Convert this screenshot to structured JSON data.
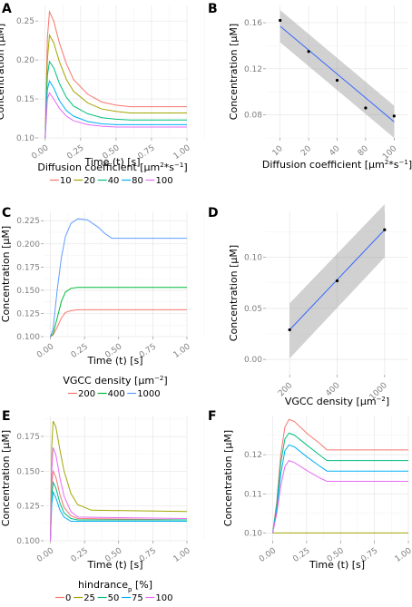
{
  "chart_data": [
    {
      "panel": "A",
      "type": "line",
      "xlabel": "Time (t) [s]",
      "ylabel": "Concentration [µM]",
      "xlim": [
        -0.05,
        1.0
      ],
      "ylim": [
        0.1,
        0.27
      ],
      "xticks": [
        "0.00",
        "0.25",
        "0.50",
        "0.75",
        "1.00"
      ],
      "yticks": [
        "0.10",
        "0.15",
        "0.20",
        "0.25"
      ],
      "legend": {
        "title": "Diffusion coefficient [µm²*s⁻¹]",
        "position": "bottom"
      },
      "series": [
        {
          "name": "10",
          "color": "#F8766D",
          "values": [
            [
              0,
              0.1
            ],
            [
              0.015,
              0.228
            ],
            [
              0.03,
              0.262
            ],
            [
              0.06,
              0.25
            ],
            [
              0.1,
              0.222
            ],
            [
              0.15,
              0.195
            ],
            [
              0.2,
              0.175
            ],
            [
              0.3,
              0.156
            ],
            [
              0.4,
              0.146
            ],
            [
              0.5,
              0.142
            ],
            [
              0.6,
              0.14
            ],
            [
              1.0,
              0.14
            ]
          ]
        },
        {
          "name": "20",
          "color": "#A3A500",
          "values": [
            [
              0,
              0.1
            ],
            [
              0.015,
              0.2
            ],
            [
              0.03,
              0.232
            ],
            [
              0.06,
              0.222
            ],
            [
              0.1,
              0.198
            ],
            [
              0.15,
              0.175
            ],
            [
              0.2,
              0.16
            ],
            [
              0.3,
              0.145
            ],
            [
              0.4,
              0.137
            ],
            [
              0.5,
              0.134
            ],
            [
              0.6,
              0.132
            ],
            [
              1.0,
              0.132
            ]
          ]
        },
        {
          "name": "40",
          "color": "#00BF7D",
          "values": [
            [
              0,
              0.1
            ],
            [
              0.015,
              0.18
            ],
            [
              0.03,
              0.198
            ],
            [
              0.06,
              0.19
            ],
            [
              0.1,
              0.17
            ],
            [
              0.15,
              0.152
            ],
            [
              0.2,
              0.141
            ],
            [
              0.3,
              0.131
            ],
            [
              0.4,
              0.126
            ],
            [
              0.5,
              0.124
            ],
            [
              0.6,
              0.123
            ],
            [
              1.0,
              0.123
            ]
          ]
        },
        {
          "name": "80",
          "color": "#00B0F6",
          "values": [
            [
              0,
              0.1
            ],
            [
              0.015,
              0.162
            ],
            [
              0.03,
              0.173
            ],
            [
              0.06,
              0.164
            ],
            [
              0.1,
              0.148
            ],
            [
              0.15,
              0.135
            ],
            [
              0.2,
              0.128
            ],
            [
              0.3,
              0.121
            ],
            [
              0.4,
              0.118
            ],
            [
              0.5,
              0.117
            ],
            [
              1.0,
              0.117
            ]
          ]
        },
        {
          "name": "100",
          "color": "#E76BF3",
          "values": [
            [
              0,
              0.1
            ],
            [
              0.015,
              0.15
            ],
            [
              0.03,
              0.158
            ],
            [
              0.06,
              0.15
            ],
            [
              0.1,
              0.138
            ],
            [
              0.15,
              0.128
            ],
            [
              0.2,
              0.122
            ],
            [
              0.3,
              0.117
            ],
            [
              0.4,
              0.115
            ],
            [
              0.5,
              0.114
            ],
            [
              1.0,
              0.114
            ]
          ]
        }
      ]
    },
    {
      "panel": "B",
      "type": "scatter",
      "xlabel": "Diffusion coefficient [µm²*s⁻¹]",
      "ylabel": "Concentration [µM]",
      "categories": [
        "10",
        "20",
        "40",
        "80",
        "100"
      ],
      "values": [
        0.162,
        0.135,
        0.11,
        0.086,
        0.079
      ],
      "ylim": [
        0.06,
        0.175
      ],
      "yticks": [
        "0.08",
        "0.12",
        "0.16"
      ],
      "fit": {
        "start": 0.157,
        "end": 0.074,
        "band_start": [
          0.143,
          0.171
        ],
        "band_end": [
          0.06,
          0.088
        ]
      }
    },
    {
      "panel": "C",
      "type": "line",
      "xlabel": "Time (t) [s]",
      "ylabel": "Concentration [µM]",
      "xlim": [
        -0.05,
        1.0
      ],
      "ylim": [
        0.1,
        0.235
      ],
      "xticks": [
        "0.00",
        "0.25",
        "0.50",
        "0.75",
        "1.00"
      ],
      "yticks": [
        "0.100",
        "0.125",
        "0.150",
        "0.175",
        "0.200",
        "0.225"
      ],
      "legend": {
        "title": "VGCC density [µm⁻²]",
        "position": "bottom"
      },
      "series": [
        {
          "name": "200",
          "color": "#F8766D",
          "values": [
            [
              0,
              0.1
            ],
            [
              0.02,
              0.102
            ],
            [
              0.05,
              0.11
            ],
            [
              0.08,
              0.12
            ],
            [
              0.11,
              0.126
            ],
            [
              0.15,
              0.128
            ],
            [
              0.2,
              0.129
            ],
            [
              1.0,
              0.129
            ]
          ]
        },
        {
          "name": "400",
          "color": "#00BA38",
          "values": [
            [
              0,
              0.1
            ],
            [
              0.02,
              0.103
            ],
            [
              0.05,
              0.12
            ],
            [
              0.08,
              0.138
            ],
            [
              0.11,
              0.148
            ],
            [
              0.15,
              0.152
            ],
            [
              0.2,
              0.153
            ],
            [
              1.0,
              0.153
            ]
          ]
        },
        {
          "name": "1000",
          "color": "#619CFF",
          "values": [
            [
              0,
              0.1
            ],
            [
              0.02,
              0.108
            ],
            [
              0.05,
              0.15
            ],
            [
              0.08,
              0.185
            ],
            [
              0.11,
              0.208
            ],
            [
              0.15,
              0.222
            ],
            [
              0.2,
              0.227
            ],
            [
              0.27,
              0.226
            ],
            [
              0.35,
              0.218
            ],
            [
              0.4,
              0.211
            ],
            [
              0.45,
              0.206
            ],
            [
              1.0,
              0.206
            ]
          ]
        }
      ]
    },
    {
      "panel": "D",
      "type": "scatter",
      "xlabel": "VGCC density [µm⁻²]",
      "ylabel": "Concentration [µM]",
      "categories": [
        "200",
        "400",
        "1000"
      ],
      "values": [
        0.029,
        0.077,
        0.127
      ],
      "ylim": [
        -0.015,
        0.145
      ],
      "yticks": [
        "0.00",
        "0.05",
        "0.10"
      ],
      "fit": {
        "start": 0.029,
        "end": 0.127,
        "band_start": [
          0.001,
          0.055
        ],
        "band_end": [
          0.1,
          0.152
        ]
      }
    },
    {
      "panel": "E",
      "type": "line",
      "xlabel": "Time (t) [s]",
      "ylabel": "Concentration [µM]",
      "xlim": [
        -0.05,
        1.0
      ],
      "ylim": [
        0.1,
        0.19
      ],
      "xticks": [
        "0.00",
        "0.25",
        "0.50",
        "0.75",
        "1.00"
      ],
      "yticks": [
        "0.100",
        "0.125",
        "0.150",
        "0.175"
      ],
      "legend": {
        "title": "hindrance_p [%]",
        "position": "bottom"
      },
      "series": [
        {
          "name": "0",
          "color": "#F8766D",
          "values": [
            [
              0,
              0.1
            ],
            [
              0.01,
              0.14
            ],
            [
              0.02,
              0.15
            ],
            [
              0.04,
              0.146
            ],
            [
              0.07,
              0.133
            ],
            [
              0.1,
              0.124
            ],
            [
              0.15,
              0.118
            ],
            [
              0.2,
              0.116
            ],
            [
              1.0,
              0.115
            ]
          ]
        },
        {
          "name": "25",
          "color": "#A3A500",
          "values": [
            [
              0,
              0.1
            ],
            [
              0.01,
              0.168
            ],
            [
              0.02,
              0.186
            ],
            [
              0.04,
              0.182
            ],
            [
              0.07,
              0.165
            ],
            [
              0.1,
              0.15
            ],
            [
              0.15,
              0.134
            ],
            [
              0.2,
              0.126
            ],
            [
              0.3,
              0.122
            ],
            [
              1.0,
              0.121
            ]
          ]
        },
        {
          "name": "50",
          "color": "#00BF7D",
          "values": [
            [
              0,
              0.1
            ],
            [
              0.01,
              0.132
            ],
            [
              0.02,
              0.142
            ],
            [
              0.04,
              0.138
            ],
            [
              0.07,
              0.127
            ],
            [
              0.1,
              0.12
            ],
            [
              0.15,
              0.116
            ],
            [
              0.2,
              0.115
            ],
            [
              1.0,
              0.115
            ]
          ]
        },
        {
          "name": "75",
          "color": "#00B0F6",
          "values": [
            [
              0,
              0.1
            ],
            [
              0.01,
              0.126
            ],
            [
              0.02,
              0.135
            ],
            [
              0.04,
              0.131
            ],
            [
              0.07,
              0.122
            ],
            [
              0.1,
              0.117
            ],
            [
              0.15,
              0.114
            ],
            [
              1.0,
              0.114
            ]
          ]
        },
        {
          "name": "100",
          "color": "#E76BF3",
          "values": [
            [
              0,
              0.1
            ],
            [
              0.01,
              0.15
            ],
            [
              0.02,
              0.167
            ],
            [
              0.04,
              0.162
            ],
            [
              0.07,
              0.145
            ],
            [
              0.1,
              0.132
            ],
            [
              0.15,
              0.121
            ],
            [
              0.2,
              0.117
            ],
            [
              1.0,
              0.116
            ]
          ]
        }
      ]
    },
    {
      "panel": "F",
      "type": "line",
      "xlabel": "Time (t) [s]",
      "ylabel": "Concentration [µM]",
      "xlim": [
        -0.05,
        1.0
      ],
      "ylim": [
        0.098,
        0.13
      ],
      "xticks": [
        "0.00",
        "0.25",
        "0.50",
        "0.75",
        "1.00"
      ],
      "yticks": [
        "0.10",
        "0.11",
        "0.12"
      ],
      "legend": {
        "title": "hindrance_p [%]",
        "position": "bottom"
      },
      "series": [
        {
          "name": "0",
          "color": "#F8766D",
          "values": [
            [
              0,
              0.1
            ],
            [
              0.03,
              0.108
            ],
            [
              0.06,
              0.12
            ],
            [
              0.09,
              0.127
            ],
            [
              0.12,
              0.129
            ],
            [
              0.16,
              0.1285
            ],
            [
              0.25,
              0.1255
            ],
            [
              0.35,
              0.1228
            ],
            [
              0.4,
              0.1212
            ],
            [
              0.45,
              0.1212
            ],
            [
              1.0,
              0.1212
            ]
          ]
        },
        {
          "name": "25",
          "color": "#A3A500",
          "values": [
            [
              0,
              0.1
            ],
            [
              1.0,
              0.1
            ]
          ]
        },
        {
          "name": "50",
          "color": "#00BF7D",
          "values": [
            [
              0,
              0.1
            ],
            [
              0.03,
              0.107
            ],
            [
              0.06,
              0.118
            ],
            [
              0.09,
              0.124
            ],
            [
              0.12,
              0.1255
            ],
            [
              0.16,
              0.125
            ],
            [
              0.25,
              0.1225
            ],
            [
              0.35,
              0.1198
            ],
            [
              0.4,
              0.1185
            ],
            [
              0.45,
              0.1185
            ],
            [
              1.0,
              0.1185
            ]
          ]
        },
        {
          "name": "75",
          "color": "#00B0F6",
          "values": [
            [
              0,
              0.1
            ],
            [
              0.03,
              0.106
            ],
            [
              0.06,
              0.115
            ],
            [
              0.09,
              0.121
            ],
            [
              0.12,
              0.1225
            ],
            [
              0.16,
              0.122
            ],
            [
              0.25,
              0.1195
            ],
            [
              0.35,
              0.117
            ],
            [
              0.4,
              0.1158
            ],
            [
              0.45,
              0.1158
            ],
            [
              1.0,
              0.1158
            ]
          ]
        },
        {
          "name": "100",
          "color": "#E76BF3",
          "values": [
            [
              0,
              0.1
            ],
            [
              0.03,
              0.105
            ],
            [
              0.06,
              0.112
            ],
            [
              0.09,
              0.117
            ],
            [
              0.12,
              0.1185
            ],
            [
              0.16,
              0.118
            ],
            [
              0.25,
              0.116
            ],
            [
              0.35,
              0.114
            ],
            [
              0.4,
              0.1132
            ],
            [
              0.45,
              0.1132
            ],
            [
              1.0,
              0.1132
            ]
          ]
        }
      ]
    }
  ],
  "styles": {
    "fit_line_color": "#3366FF",
    "band_color": "#999999",
    "point_color": "#000000"
  }
}
